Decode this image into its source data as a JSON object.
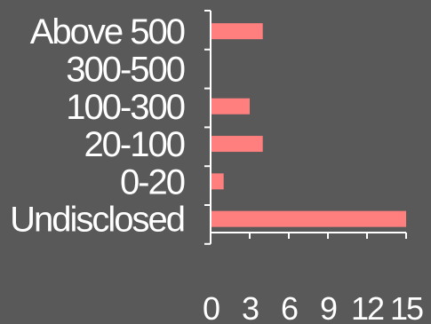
{
  "chart_data": {
    "type": "bar",
    "orientation": "horizontal",
    "categories": [
      "Above 500",
      "300-500",
      "100-300",
      "20-100",
      "0-20",
      "Undisclosed"
    ],
    "values": [
      4,
      0,
      3,
      4,
      1,
      15
    ],
    "xlim": [
      0,
      15
    ],
    "xticks": [
      "0",
      "3",
      "6",
      "9",
      "12",
      "15"
    ],
    "bar_color": "#ff7f7f",
    "background_color": "#595959",
    "axis_color": "#ffffff",
    "text_color": "#ffffff",
    "grid": false,
    "title": "",
    "xlabel": "",
    "ylabel": ""
  }
}
